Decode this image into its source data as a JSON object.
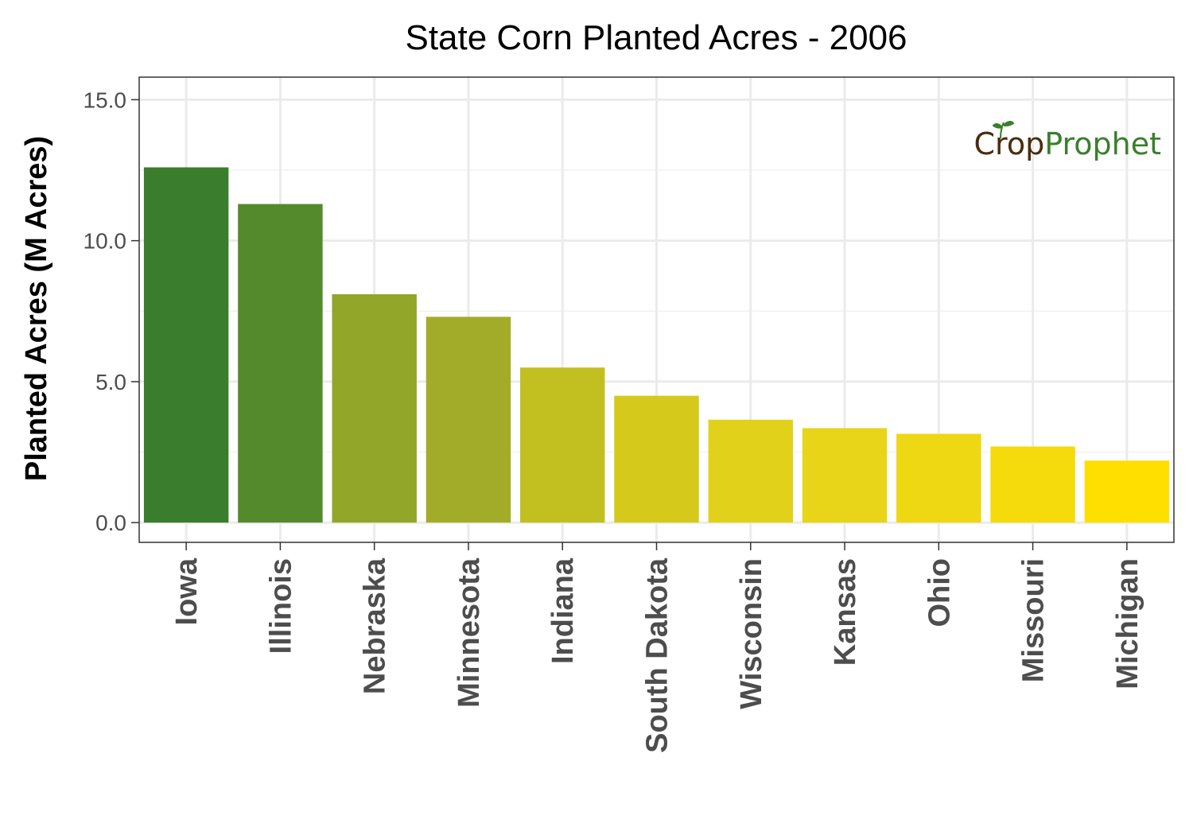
{
  "chart_data": {
    "type": "bar",
    "title": "State Corn Planted Acres - 2006",
    "xlabel": "",
    "ylabel": "Planted Acres (M Acres)",
    "categories": [
      "Iowa",
      "Illinois",
      "Nebraska",
      "Minnesota",
      "Indiana",
      "South Dakota",
      "Wisconsin",
      "Kansas",
      "Ohio",
      "Missouri",
      "Michigan"
    ],
    "values": [
      12.6,
      11.3,
      8.1,
      7.3,
      5.5,
      4.5,
      3.65,
      3.35,
      3.15,
      2.7,
      2.2
    ],
    "colors": [
      "#3a7d2c",
      "#548a2c",
      "#92a62a",
      "#a3ac28",
      "#c2c020",
      "#d5c91c",
      "#e2d11a",
      "#e8d418",
      "#eed713",
      "#f5da0c",
      "#ffdf00"
    ],
    "yticks": [
      "0.0",
      "5.0",
      "10.0",
      "15.0"
    ],
    "ylim": [
      -0.7,
      15.8
    ],
    "grid": true,
    "legend": "none"
  },
  "logo": {
    "crop": "Crop",
    "prophet": "Prophet"
  }
}
